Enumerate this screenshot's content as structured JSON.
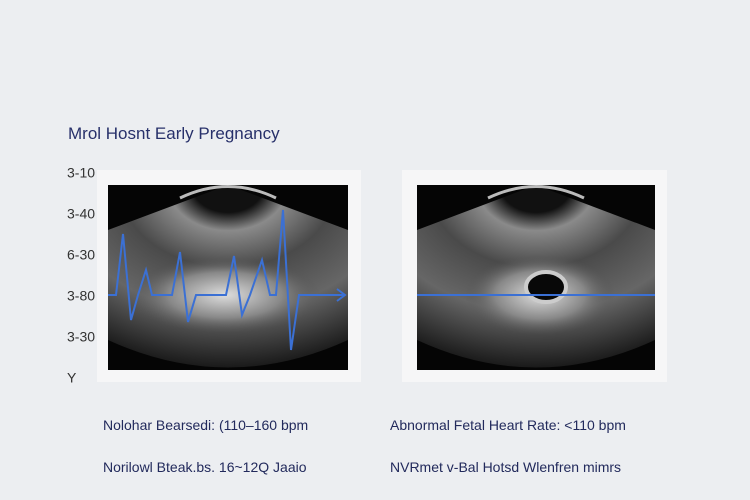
{
  "header": {
    "title": "Mrol Hosnt Early Pregnancy"
  },
  "axis_labels": [
    "3-10",
    "3-40",
    "6-30",
    "3-80",
    "3-30",
    "Y"
  ],
  "panels": [
    {
      "caption": "Nolohar Bearsedi: (110–160 bpm",
      "note": "Norilowl Bteak.bs. 16~12Q Jaaio"
    },
    {
      "caption": "Abnormal Fetal Heart Rate: <110 bpm",
      "note": "NVRmet v-Bal Hotsd Wlenfren mimrs"
    }
  ]
}
